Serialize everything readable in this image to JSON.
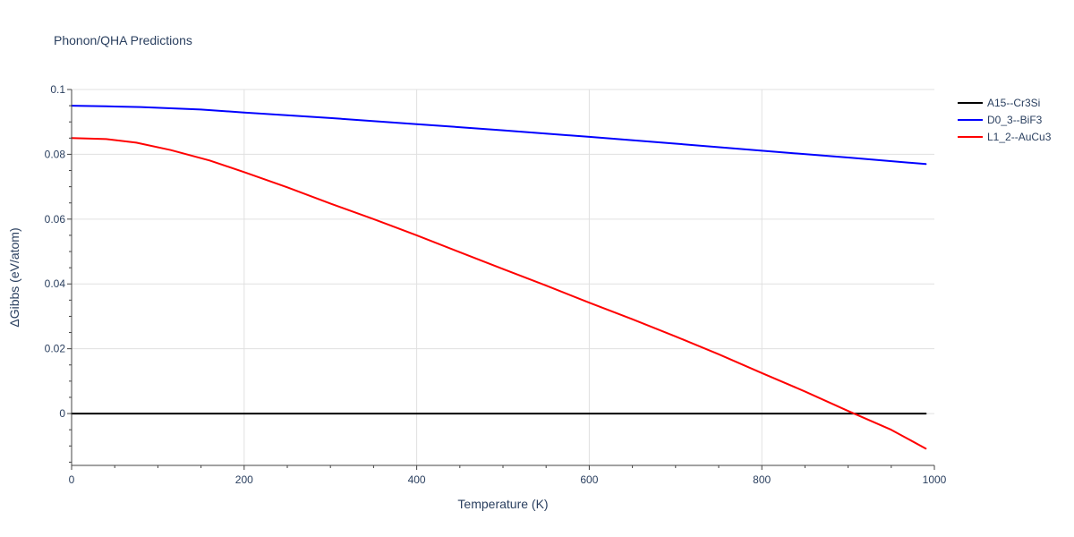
{
  "chart_data": {
    "type": "line",
    "title": "Phonon/QHA Predictions",
    "xlabel": "Temperature (K)",
    "ylabel": "ΔGibbs (eV/atom)",
    "xlim": [
      0,
      1000
    ],
    "ylim": [
      -0.016,
      0.1
    ],
    "xticks": [
      0,
      200,
      400,
      600,
      800,
      1000
    ],
    "xtick_labels": [
      "0",
      "200",
      "400",
      "600",
      "800",
      "1000"
    ],
    "yticks": [
      0,
      0.02,
      0.04,
      0.06,
      0.08,
      0.1
    ],
    "ytick_labels": [
      "0",
      "0.02",
      "0.04",
      "0.06",
      "0.08",
      "0.1"
    ],
    "grid": true,
    "legend_position": "top-right",
    "series": [
      {
        "name": "A15--Cr3Si",
        "color": "#000000",
        "x": [
          0,
          990
        ],
        "y": [
          0,
          0
        ]
      },
      {
        "name": "D0_3--BiF3",
        "color": "#0000ff",
        "x": [
          0,
          40,
          80,
          150,
          200,
          300,
          400,
          500,
          600,
          700,
          800,
          900,
          990
        ],
        "y": [
          0.095,
          0.0948,
          0.0946,
          0.0938,
          0.0929,
          0.0912,
          0.0893,
          0.0874,
          0.0854,
          0.0833,
          0.0811,
          0.079,
          0.077
        ]
      },
      {
        "name": "L1_2--AuCu3",
        "color": "#ff0000",
        "x": [
          0,
          40,
          75,
          115,
          160,
          200,
          250,
          300,
          350,
          400,
          450,
          500,
          550,
          600,
          650,
          700,
          750,
          800,
          850,
          900,
          950,
          990
        ],
        "y": [
          0.085,
          0.0847,
          0.0836,
          0.0813,
          0.0781,
          0.0745,
          0.0698,
          0.0648,
          0.06,
          0.055,
          0.0498,
          0.0446,
          0.0395,
          0.0342,
          0.0291,
          0.0238,
          0.0183,
          0.0125,
          0.0068,
          0.0008,
          -0.005,
          -0.0108
        ]
      }
    ]
  }
}
